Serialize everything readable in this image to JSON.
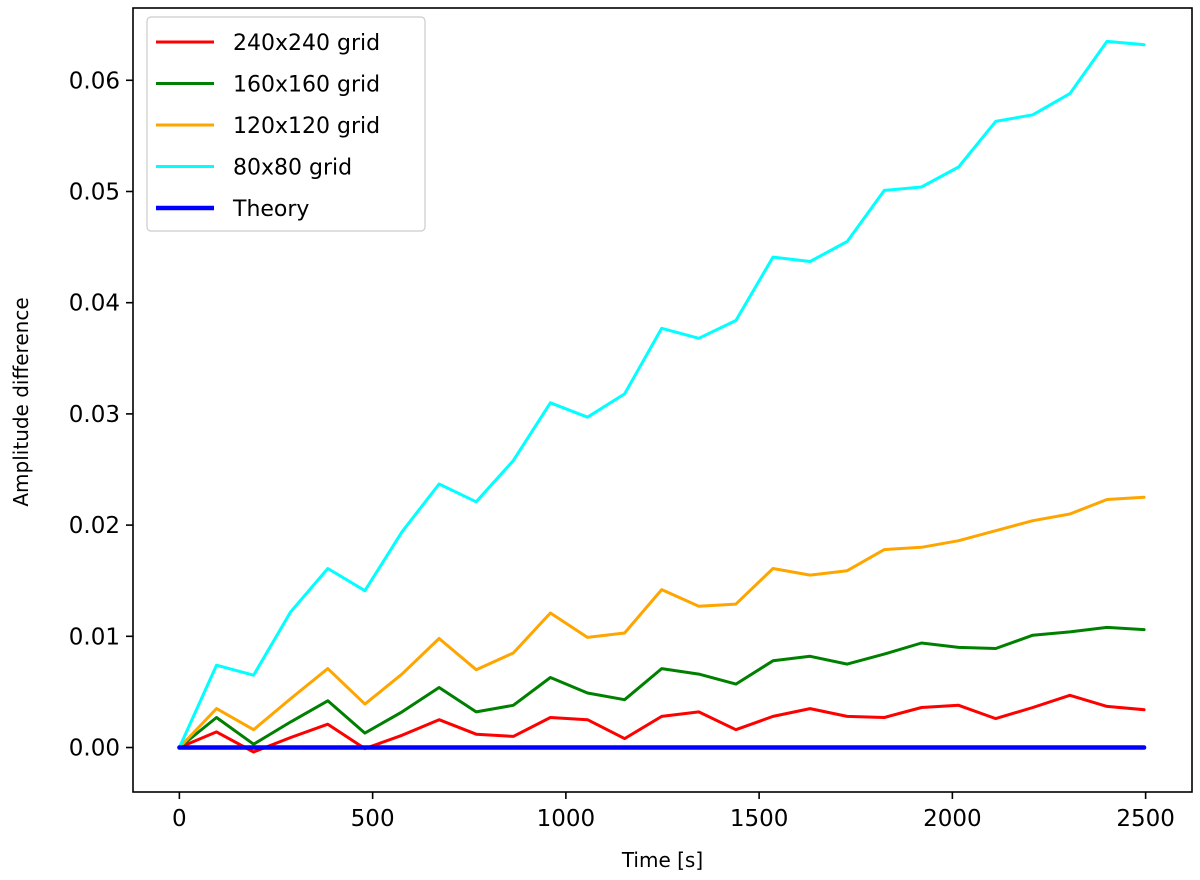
{
  "chart_data": {
    "type": "line",
    "xlabel": "Time [s]",
    "ylabel": "Amplitude difference",
    "xlim": [
      -120,
      2620
    ],
    "ylim": [
      -0.004,
      0.0665
    ],
    "xticks": [
      0,
      500,
      1000,
      1500,
      2000,
      2500
    ],
    "xtick_labels": [
      "0",
      "500",
      "1000",
      "1500",
      "2000",
      "2500"
    ],
    "yticks": [
      0.0,
      0.01,
      0.02,
      0.03,
      0.04,
      0.05,
      0.06
    ],
    "ytick_labels": [
      "0.00",
      "0.01",
      "0.02",
      "0.03",
      "0.04",
      "0.05",
      "0.06"
    ],
    "grid": false,
    "legend_position": "top-left",
    "x": [
      0,
      96,
      192,
      288,
      384,
      480,
      576,
      672,
      768,
      864,
      960,
      1056,
      1152,
      1248,
      1344,
      1440,
      1536,
      1632,
      1728,
      1824,
      1920,
      2016,
      2112,
      2208,
      2304,
      2400,
      2496
    ],
    "series": [
      {
        "name": "240x240 grid",
        "color": "#ff0000",
        "width": 3,
        "values": [
          0.0,
          0.0014,
          -0.0004,
          0.0009,
          0.0021,
          -0.0001,
          0.0011,
          0.0025,
          0.0012,
          0.001,
          0.0027,
          0.0025,
          0.0008,
          0.0028,
          0.0032,
          0.0016,
          0.0028,
          0.0035,
          0.0028,
          0.0027,
          0.0036,
          0.0038,
          0.0026,
          0.0036,
          0.0047,
          0.0037,
          0.0034
        ]
      },
      {
        "name": "160x160 grid",
        "color": "#008000",
        "width": 3,
        "values": [
          0.0,
          0.0027,
          0.0003,
          0.0023,
          0.0042,
          0.0013,
          0.0032,
          0.0054,
          0.0032,
          0.0038,
          0.0063,
          0.0049,
          0.0043,
          0.0071,
          0.0066,
          0.0057,
          0.0078,
          0.0082,
          0.0075,
          0.0084,
          0.0094,
          0.009,
          0.0089,
          0.0101,
          0.0104,
          0.0108,
          0.0106
        ]
      },
      {
        "name": "120x120 grid",
        "color": "#ffa500",
        "width": 3,
        "values": [
          0.0,
          0.0035,
          0.0016,
          0.0044,
          0.0071,
          0.0039,
          0.0066,
          0.0098,
          0.007,
          0.0085,
          0.0121,
          0.0099,
          0.0103,
          0.0142,
          0.0127,
          0.0129,
          0.0161,
          0.0155,
          0.0159,
          0.0178,
          0.018,
          0.0186,
          0.0195,
          0.0204,
          0.021,
          0.0223,
          0.0225
        ]
      },
      {
        "name": "80x80 grid",
        "color": "#00ffff",
        "width": 3,
        "values": [
          0.0,
          0.0074,
          0.0065,
          0.0122,
          0.0161,
          0.0141,
          0.0194,
          0.0237,
          0.0221,
          0.0258,
          0.031,
          0.0297,
          0.0318,
          0.0377,
          0.0368,
          0.0384,
          0.0441,
          0.0437,
          0.0455,
          0.0501,
          0.0504,
          0.0522,
          0.0563,
          0.0569,
          0.0588,
          0.0635,
          0.0632
        ]
      },
      {
        "name": "Theory",
        "color": "#0000ff",
        "width": 4.5,
        "values": [
          0.0,
          0.0,
          0.0,
          0.0,
          0.0,
          0.0,
          0.0,
          0.0,
          0.0,
          0.0,
          0.0,
          0.0,
          0.0,
          0.0,
          0.0,
          0.0,
          0.0,
          0.0,
          0.0,
          0.0,
          0.0,
          0.0,
          0.0,
          0.0,
          0.0,
          0.0,
          0.0
        ]
      }
    ]
  }
}
